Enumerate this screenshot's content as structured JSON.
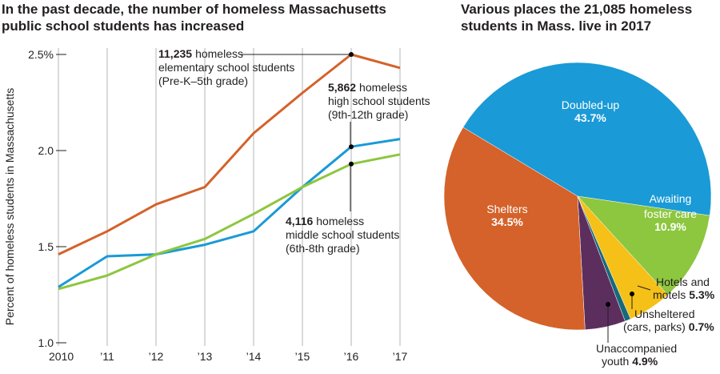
{
  "chart_data": [
    {
      "type": "line",
      "title": [
        "In the past decade, the number of homeless Massachusetts",
        "public school students has increased"
      ],
      "ylabel": "Percent of homeless students in Massachusetts",
      "categories": [
        "2010",
        "’11",
        "’12",
        "’13",
        "’14",
        "’15",
        "’16",
        "’17"
      ],
      "series": [
        {
          "color": "#d4622a",
          "values": [
            1.46,
            1.58,
            1.72,
            1.81,
            2.09,
            2.3,
            2.5,
            2.43
          ]
        },
        {
          "color": "#1a9ad6",
          "values": [
            1.29,
            1.45,
            1.46,
            1.51,
            1.58,
            1.81,
            2.02,
            2.06
          ]
        },
        {
          "color": "#8dc63f",
          "values": [
            1.28,
            1.35,
            1.46,
            1.54,
            1.67,
            1.81,
            1.93,
            1.98
          ]
        }
      ],
      "ylim": [
        1.0,
        2.5
      ],
      "yticks": [
        {
          "value": 1.0,
          "label": "1.0"
        },
        1.5,
        {
          "value": 2.0,
          "label": "2.0"
        },
        {
          "value": 2.5,
          "label": "2.5%"
        }
      ],
      "grid": true,
      "annotations": [
        {
          "number": "11,235",
          "lines": [
            "homeless",
            "elementary school students",
            "(Pre-K–5th grade)"
          ]
        },
        {
          "number": "5,862",
          "lines": [
            "homeless",
            "high school students",
            "(9th-12th grade)"
          ]
        },
        {
          "number": "4,116",
          "lines": [
            "homeless",
            "middle school students",
            "(6th-8th grade)"
          ]
        }
      ]
    },
    {
      "type": "pie",
      "title": [
        "Various places the 21,085 homeless",
        "students in Mass. live in 2017"
      ],
      "categories": [
        [
          "Doubled-up"
        ],
        [
          "Awaiting",
          "foster care"
        ],
        [
          "Hotels and",
          "motels"
        ],
        [
          "Unsheltered",
          "(cars, parks)"
        ],
        [
          "Unaccompanied",
          "youth"
        ],
        [
          "Shelters"
        ]
      ],
      "values": [
        43.7,
        10.9,
        5.3,
        0.7,
        4.9,
        34.5
      ],
      "value_labels": [
        "43.7%",
        "10.9%",
        "5.3%",
        "0.7%",
        "4.9%",
        "34.5%"
      ],
      "colors": [
        "#1a9ad6",
        "#8dc63f",
        "#f5c018",
        "#17697a",
        "#5c2e5e",
        "#d4622a"
      ]
    }
  ]
}
